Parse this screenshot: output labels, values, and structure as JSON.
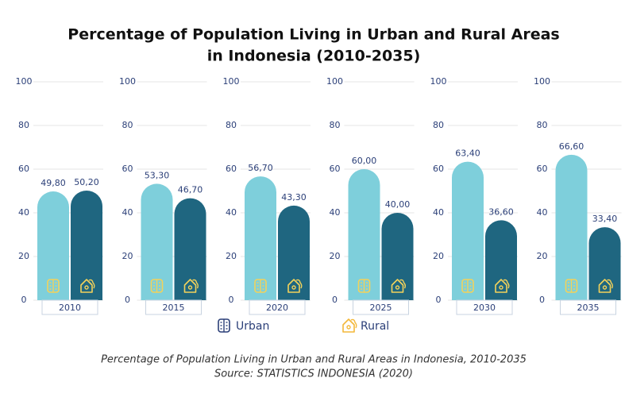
{
  "chart_data": {
    "type": "bar",
    "title": [
      "Percentage of Population Living in Urban and Rural Areas",
      "in Indonesia (2010-2035)"
    ],
    "categories": [
      "2010",
      "2015",
      "2020",
      "2025",
      "2030",
      "2035"
    ],
    "series": [
      {
        "name": "Urban",
        "color": "#7ecfdb",
        "values": [
          49.8,
          53.3,
          56.7,
          60.0,
          63.4,
          66.6
        ],
        "value_labels": [
          "49,80",
          "53,30",
          "56,70",
          "60,00",
          "63,40",
          "66,60"
        ]
      },
      {
        "name": "Rural",
        "color": "#1f6680",
        "values": [
          50.2,
          46.7,
          43.3,
          40.0,
          36.6,
          33.4
        ],
        "value_labels": [
          "50,20",
          "46,70",
          "43,30",
          "40,00",
          "36,60",
          "33,40"
        ]
      }
    ],
    "ylim": [
      0,
      100
    ],
    "yticks": [
      0,
      20,
      40,
      60,
      80,
      100
    ],
    "grid": true,
    "caption": [
      "Percentage of Population Living in Urban and Rural Areas in Indonesia, 2010-2035",
      "Source: STATISTICS INDONESIA (2020)"
    ]
  }
}
